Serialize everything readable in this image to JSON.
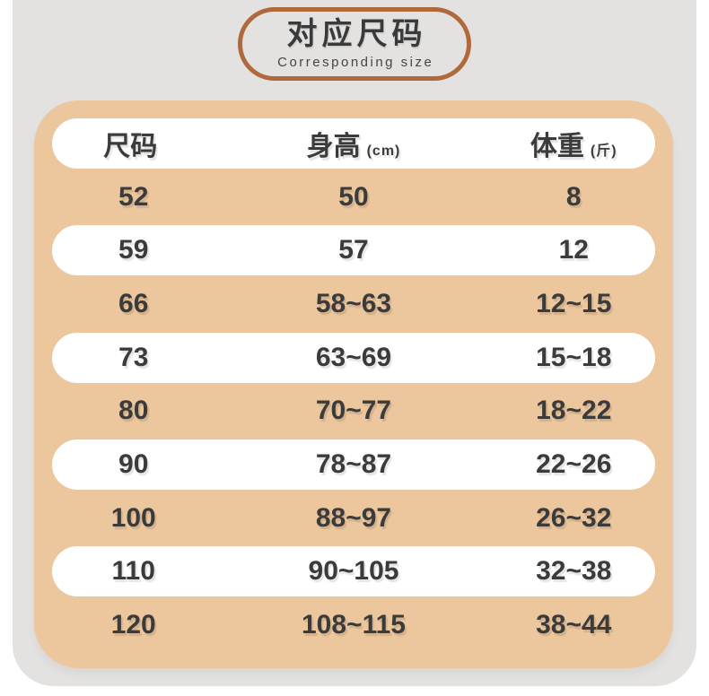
{
  "page": {
    "background": "#ffffff",
    "card_background": "#e3e2e1",
    "table_background": "#ecc69c",
    "pill_background": "#ffffff",
    "accent_border_color": "#b0693c",
    "text_color": "#3b3b3b"
  },
  "badge": {
    "title": "对应尺码",
    "subtitle": "Corresponding size"
  },
  "table": {
    "headers": [
      {
        "label": "尺码",
        "unit": ""
      },
      {
        "label": "身高",
        "unit": "(cm)"
      },
      {
        "label": "体重",
        "unit": "(斤)"
      }
    ],
    "rows": [
      [
        "52",
        "50",
        "8"
      ],
      [
        "59",
        "57",
        "12"
      ],
      [
        "66",
        "58~63",
        "12~15"
      ],
      [
        "73",
        "63~69",
        "15~18"
      ],
      [
        "80",
        "70~77",
        "18~22"
      ],
      [
        "90",
        "78~87",
        "22~26"
      ],
      [
        "100",
        "88~97",
        "26~32"
      ],
      [
        "110",
        "90~105",
        "32~38"
      ],
      [
        "120",
        "108~115",
        "38~44"
      ]
    ]
  },
  "chart_data": {
    "type": "table",
    "title": "对应尺码 (Corresponding size)",
    "columns": [
      "尺码",
      "身高(cm)",
      "体重(斤)"
    ],
    "rows": [
      [
        "52",
        "50",
        "8"
      ],
      [
        "59",
        "57",
        "12"
      ],
      [
        "66",
        "58~63",
        "12~15"
      ],
      [
        "73",
        "63~69",
        "15~18"
      ],
      [
        "80",
        "70~77",
        "18~22"
      ],
      [
        "90",
        "78~87",
        "22~26"
      ],
      [
        "100",
        "88~97",
        "26~32"
      ],
      [
        "110",
        "90~105",
        "32~38"
      ],
      [
        "120",
        "108~115",
        "38~44"
      ]
    ]
  }
}
